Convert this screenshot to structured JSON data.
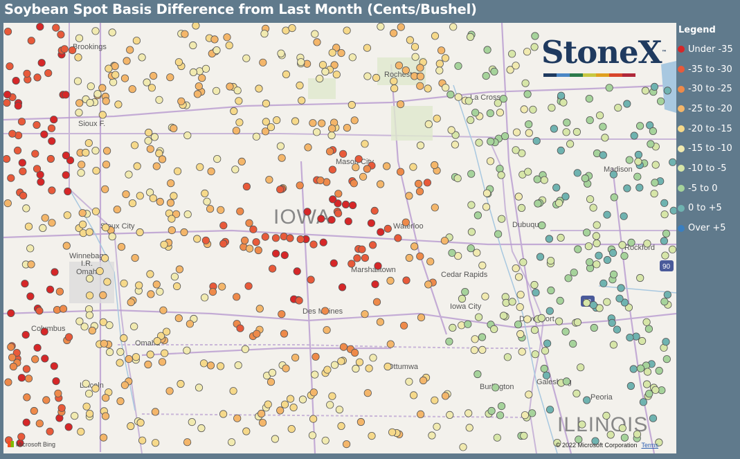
{
  "title": "Soybean Spot Basis Difference from Last Month (Cents/Bushel)",
  "legend": {
    "title": "Legend",
    "items": [
      {
        "label": "Under -35",
        "color": "#d62728"
      },
      {
        "label": "-35 to -30",
        "color": "#e85a3a"
      },
      {
        "label": "-30 to -25",
        "color": "#ee8a4a"
      },
      {
        "label": "-25 to -20",
        "color": "#f4b66a"
      },
      {
        "label": "-20 to -15",
        "color": "#f6d98a"
      },
      {
        "label": "-15 to -10",
        "color": "#f1eab0"
      },
      {
        "label": "-10 to -5",
        "color": "#d7e6a8"
      },
      {
        "label": "-5 to 0",
        "color": "#a6d39b"
      },
      {
        "label": "0 to +5",
        "color": "#6fb3b0"
      },
      {
        "label": "Over +5",
        "color": "#3a7fc0"
      }
    ]
  },
  "logo": {
    "text": "StoneX",
    "tm": "™"
  },
  "map": {
    "cities": [
      "Brookings",
      "Rochester",
      "La Crosse",
      "Sioux Falls",
      "Mason City",
      "Madison",
      "Sioux City",
      "IOWA",
      "Waterloo",
      "Dubuque",
      "Winnebago I.R.",
      "Omaha",
      "Rockford",
      "Waterloo",
      "Cedar Rapids",
      "Marshalltown",
      "Iowa City",
      "Des Moines",
      "Davenport",
      "Columbus",
      "Omaha",
      "Ottumwa",
      "Lincoln",
      "Burlington",
      "Galesburg",
      "Peoria",
      "ILLINOIS"
    ],
    "state_labels": [
      "IOWA",
      "ILLINOIS"
    ],
    "highway_shields": [
      "90",
      "88"
    ]
  },
  "footer": {
    "copyright": "© 2022 Microsoft Corporation",
    "terms": "Terms",
    "attribution": "Microsoft Bing"
  }
}
